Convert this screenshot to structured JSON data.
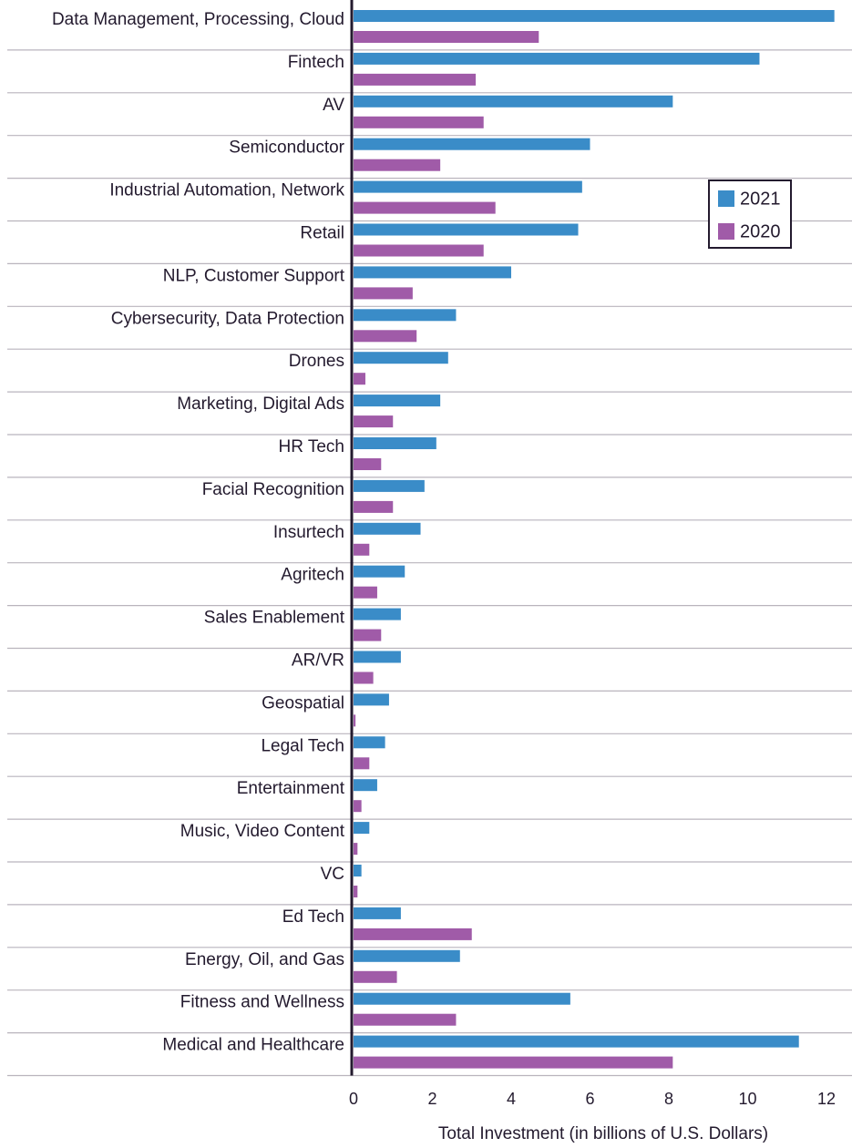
{
  "chart_data": {
    "type": "barh",
    "x_label": "Total Investment (in billions of U.S. Dollars)",
    "categories": [
      "Data Management, Processing, Cloud",
      "Fintech",
      "AV",
      "Semiconductor",
      "Industrial Automation, Network",
      "Retail",
      "NLP, Customer Support",
      "Cybersecurity, Data Protection",
      "Drones",
      "Marketing, Digital Ads",
      "HR Tech",
      "Facial Recognition",
      "Insurtech",
      "Agritech",
      "Sales Enablement",
      "AR/VR",
      "Geospatial",
      "Legal Tech",
      "Entertainment",
      "Music, Video Content",
      "VC",
      "Ed Tech",
      "Energy, Oil, and Gas",
      "Fitness and Wellness",
      "Medical and Healthcare"
    ],
    "series": [
      {
        "name": "2021",
        "color": "#3a8cc8",
        "values": [
          12.2,
          10.3,
          8.1,
          6.0,
          5.8,
          5.7,
          4.0,
          2.6,
          2.4,
          2.2,
          2.1,
          1.8,
          1.7,
          1.3,
          1.2,
          1.2,
          0.9,
          0.8,
          0.6,
          0.4,
          0.2,
          1.2,
          2.7,
          5.5,
          11.3
        ]
      },
      {
        "name": "2020",
        "color": "#a05ba8",
        "values": [
          4.7,
          3.1,
          3.3,
          2.2,
          3.6,
          3.3,
          1.5,
          1.6,
          0.3,
          1.0,
          0.7,
          1.0,
          0.4,
          0.6,
          0.7,
          0.5,
          0.05,
          0.4,
          0.2,
          0.1,
          0.1,
          3.0,
          1.1,
          2.6,
          8.1
        ]
      }
    ],
    "xlim": [
      0,
      12.6
    ],
    "xticks": [
      0,
      2,
      4,
      6,
      8,
      10,
      12
    ],
    "grid": false,
    "legend": "upper right"
  }
}
